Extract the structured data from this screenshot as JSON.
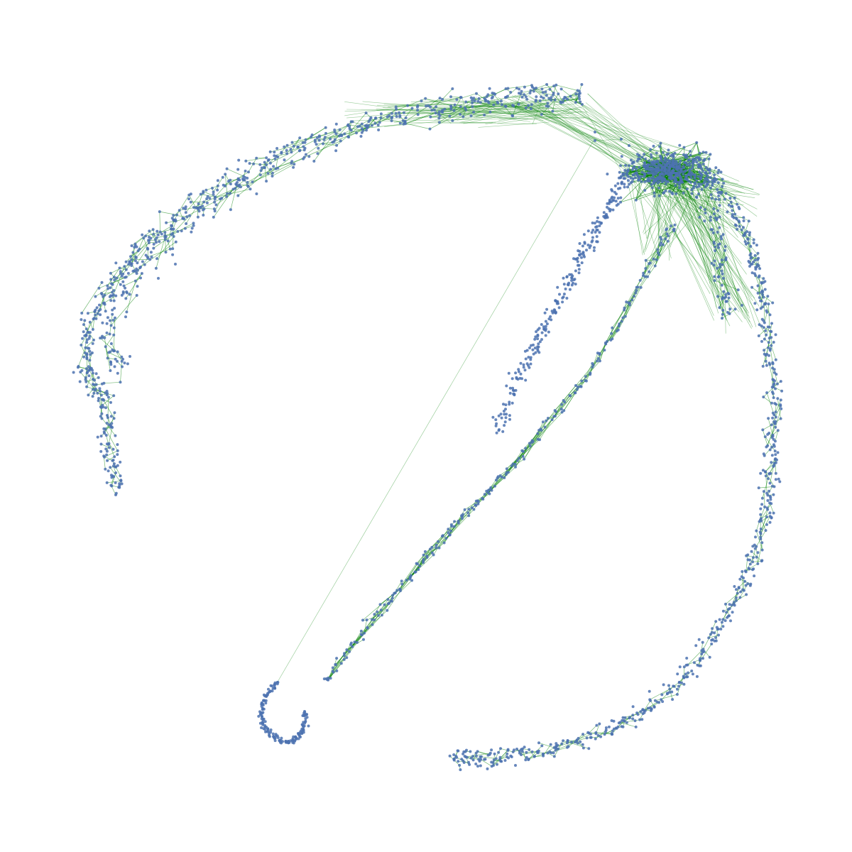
{
  "figure": {
    "kind": "network graph layout",
    "background_color": "#ffffff",
    "node_color": "#4c72b0",
    "edge_color": "#008000",
    "node_shape": "circle",
    "has_title": false,
    "has_axes": false,
    "has_legend": false,
    "text": []
  }
}
